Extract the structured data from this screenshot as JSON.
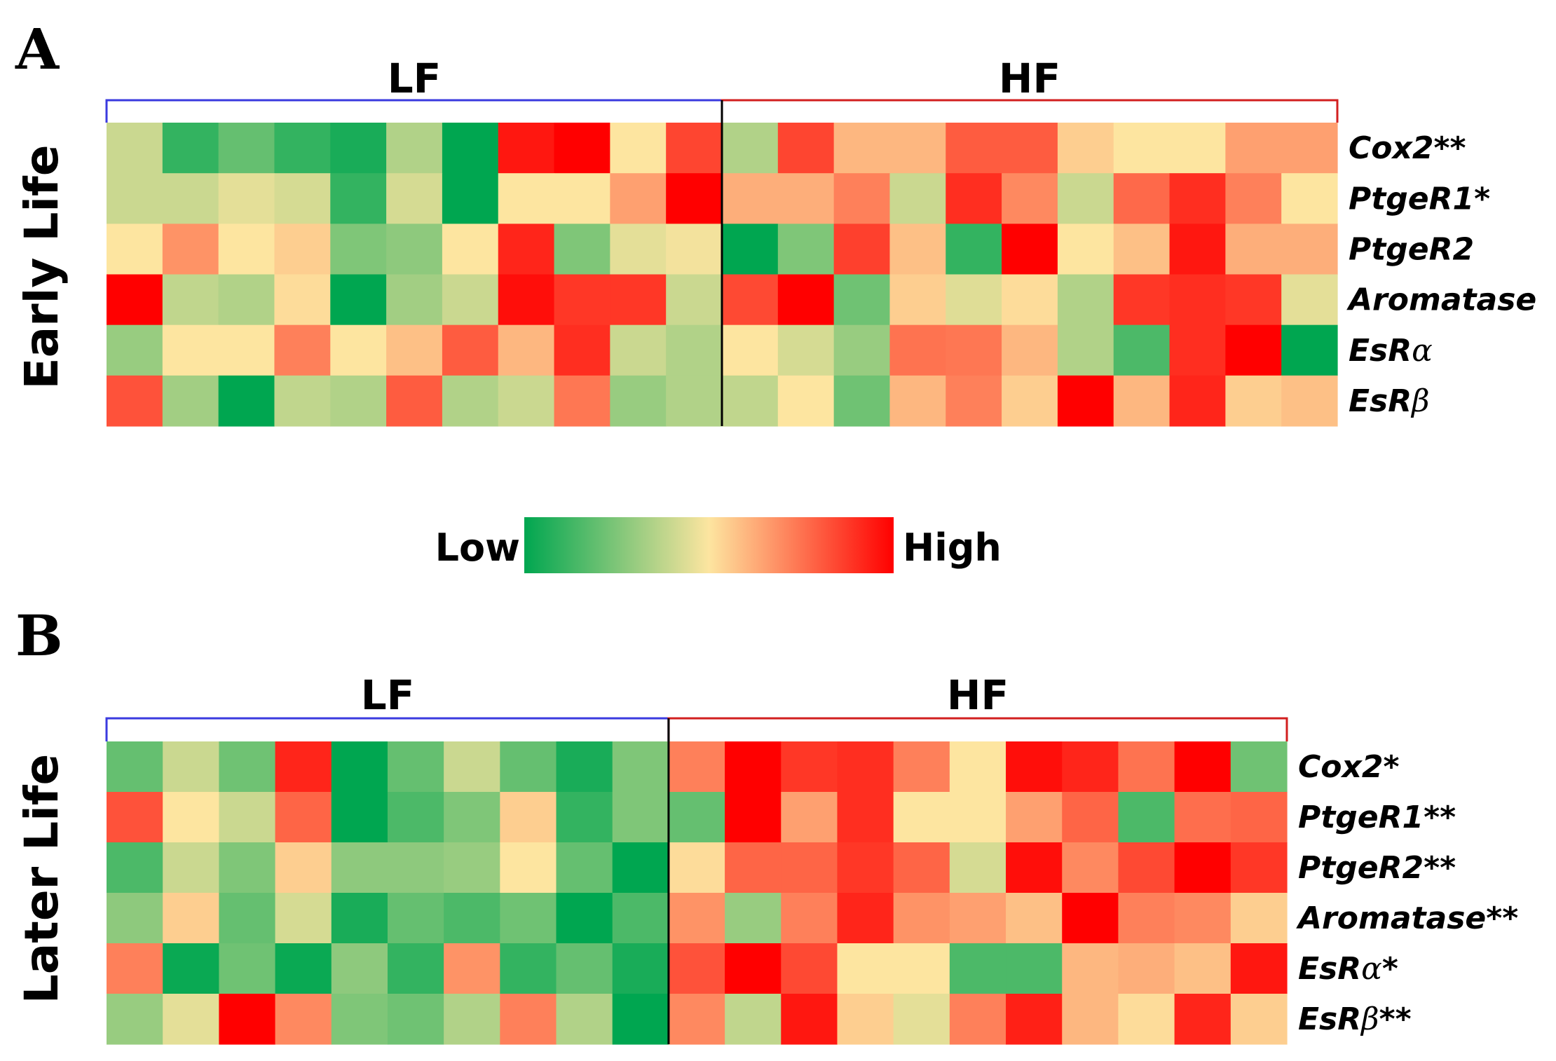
{
  "chart_data": [
    {
      "type": "heatmap",
      "panel": "A",
      "row_group_label": "Early Life",
      "groups": [
        {
          "name": "LF",
          "n": 11,
          "color": "#3a3adf"
        },
        {
          "name": "HF",
          "n": 11,
          "color": "#d21f1f"
        }
      ],
      "genes": [
        {
          "base": "Cox2",
          "greek": "",
          "suffix": "**"
        },
        {
          "base": "PtgeR1",
          "greek": "",
          "suffix": "*"
        },
        {
          "base": "PtgeR2",
          "greek": "",
          "suffix": ""
        },
        {
          "base": "Aromatase",
          "greek": "",
          "suffix": ""
        },
        {
          "base": "EsR",
          "greek": "α",
          "suffix": ""
        },
        {
          "base": "EsR",
          "greek": "β",
          "suffix": ""
        }
      ],
      "values": [
        [
          0.4,
          0.1,
          0.2,
          0.1,
          0.05,
          0.35,
          0.0,
          0.95,
          1.0,
          0.5,
          0.85,
          0.35,
          0.85,
          0.6,
          0.6,
          0.8,
          0.8,
          0.55,
          0.5,
          0.5,
          0.65,
          0.65
        ],
        [
          0.4,
          0.4,
          0.45,
          0.42,
          0.1,
          0.42,
          0.0,
          0.5,
          0.5,
          0.65,
          1.0,
          0.62,
          0.62,
          0.72,
          0.4,
          0.9,
          0.7,
          0.4,
          0.77,
          0.9,
          0.72,
          0.5
        ],
        [
          0.5,
          0.68,
          0.5,
          0.55,
          0.25,
          0.28,
          0.5,
          0.92,
          0.25,
          0.45,
          0.48,
          0.0,
          0.25,
          0.86,
          0.58,
          0.1,
          1.0,
          0.5,
          0.58,
          0.95,
          0.62,
          0.62
        ],
        [
          1.0,
          0.38,
          0.35,
          0.52,
          0.0,
          0.32,
          0.4,
          0.97,
          0.88,
          0.88,
          0.4,
          0.84,
          1.0,
          0.22,
          0.55,
          0.44,
          0.52,
          0.35,
          0.88,
          0.9,
          0.88,
          0.45
        ],
        [
          0.3,
          0.5,
          0.5,
          0.72,
          0.5,
          0.58,
          0.8,
          0.6,
          0.9,
          0.4,
          0.35,
          0.5,
          0.42,
          0.3,
          0.75,
          0.74,
          0.6,
          0.35,
          0.15,
          0.9,
          1.0,
          0.0
        ],
        [
          0.82,
          0.32,
          0.0,
          0.38,
          0.35,
          0.8,
          0.35,
          0.4,
          0.74,
          0.3,
          0.35,
          0.38,
          0.5,
          0.22,
          0.6,
          0.72,
          0.55,
          1.0,
          0.6,
          0.92,
          0.55,
          0.58
        ]
      ]
    },
    {
      "type": "heatmap",
      "panel": "B",
      "row_group_label": "Later Life",
      "groups": [
        {
          "name": "LF",
          "n": 10,
          "color": "#3a3adf"
        },
        {
          "name": "HF",
          "n": 11,
          "color": "#d21f1f"
        }
      ],
      "genes": [
        {
          "base": "Cox2",
          "greek": "",
          "suffix": "*"
        },
        {
          "base": "PtgeR1",
          "greek": "",
          "suffix": "**"
        },
        {
          "base": "PtgeR2",
          "greek": "",
          "suffix": "**"
        },
        {
          "base": "Aromatase",
          "greek": "",
          "suffix": "**"
        },
        {
          "base": "EsR",
          "greek": "α",
          "suffix": "*"
        },
        {
          "base": "EsR",
          "greek": "β",
          "suffix": "**"
        }
      ],
      "values": [
        [
          0.2,
          0.4,
          0.22,
          0.92,
          0.0,
          0.2,
          0.4,
          0.2,
          0.05,
          0.25,
          0.72,
          1.0,
          0.88,
          0.9,
          0.72,
          0.5,
          0.97,
          0.92,
          0.75,
          1.0,
          0.22
        ],
        [
          0.82,
          0.5,
          0.4,
          0.78,
          0.0,
          0.15,
          0.25,
          0.55,
          0.1,
          0.25,
          0.2,
          1.0,
          0.65,
          0.9,
          0.5,
          0.5,
          0.65,
          0.78,
          0.15,
          0.76,
          0.78
        ],
        [
          0.15,
          0.4,
          0.25,
          0.55,
          0.28,
          0.28,
          0.3,
          0.5,
          0.2,
          0.0,
          0.52,
          0.78,
          0.78,
          0.88,
          0.78,
          0.42,
          0.97,
          0.7,
          0.84,
          1.0,
          0.88
        ],
        [
          0.28,
          0.55,
          0.2,
          0.42,
          0.05,
          0.2,
          0.15,
          0.22,
          0.0,
          0.15,
          0.68,
          0.3,
          0.72,
          0.92,
          0.68,
          0.65,
          0.58,
          1.0,
          0.72,
          0.7,
          0.55
        ],
        [
          0.72,
          0.02,
          0.22,
          0.02,
          0.28,
          0.1,
          0.68,
          0.1,
          0.2,
          0.05,
          0.82,
          1.0,
          0.84,
          0.5,
          0.5,
          0.15,
          0.15,
          0.6,
          0.62,
          0.58,
          0.95
        ],
        [
          0.3,
          0.45,
          1.0,
          0.7,
          0.25,
          0.22,
          0.35,
          0.72,
          0.35,
          0.0,
          0.7,
          0.38,
          0.95,
          0.55,
          0.45,
          0.72,
          0.93,
          0.6,
          0.52,
          0.92,
          0.55
        ]
      ]
    }
  ],
  "legend": {
    "low": "Low",
    "high": "High"
  },
  "colors": {
    "low": "#00a650",
    "mid": "#fde5a0",
    "high": "#ff0000"
  }
}
